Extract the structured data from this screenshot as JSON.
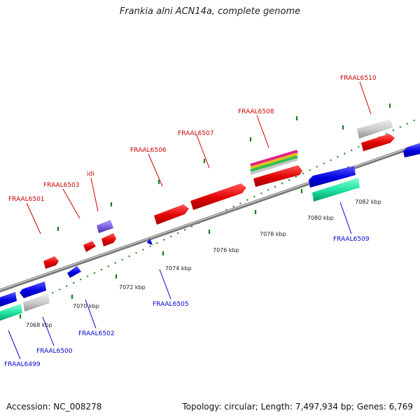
{
  "title": "Frankia alni ACN14a, complete genome",
  "footer": {
    "accession": "Accession: NC_008278",
    "summary": "Topology: circular; Length: 7,497,934 bp; Genes: 6,769"
  },
  "colors": {
    "forward_label": "#cc0000",
    "reverse_label": "#0000cc",
    "backbone": "#808080",
    "tick": "#1a7a1a"
  },
  "scale_labels": [
    "7068 kbp",
    "7070 kbp",
    "7072 kbp",
    "7074 kbp",
    "7076 kbp",
    "7078 kbp",
    "7080 kbp",
    "7082 kbp"
  ],
  "forward_genes": [
    "FRAAL6501",
    "FRAAL6503",
    "idi",
    "FRAAL6506",
    "FRAAL6507",
    "FRAAL6508",
    "FRAAL6510"
  ],
  "reverse_genes": [
    "FRAAL6499",
    "FRAAL6500",
    "FRAAL6502",
    "FRAAL6505",
    "FRAAL6509"
  ]
}
